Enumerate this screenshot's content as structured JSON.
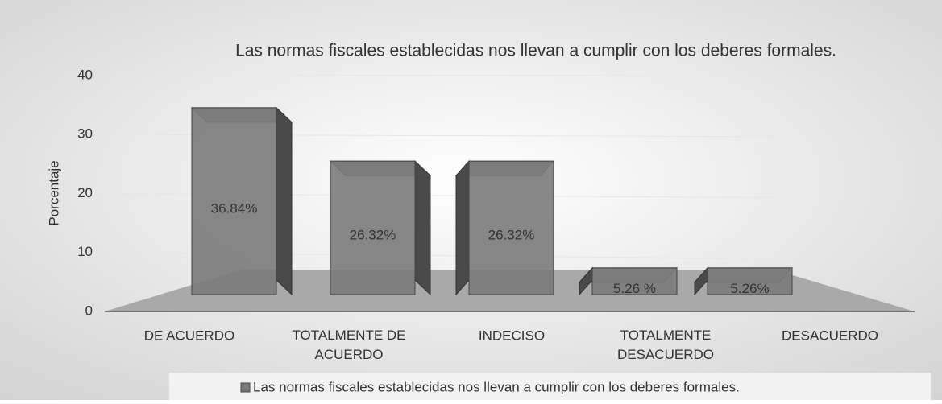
{
  "chart_data": {
    "type": "bar3d",
    "title": "Las normas fiscales establecidas nos llevan a cumplir con los deberes formales.",
    "y_label": "Porcentaje",
    "categories": [
      "DE ACUERDO",
      "TOTALMENTE DE ACUERDO",
      "INDECISO",
      "TOTALMENTE DESACUERDO",
      "DESACUERDO"
    ],
    "series": [
      {
        "name": "Las normas fiscales establecidas nos llevan a cumplir con los deberes formales.",
        "color": "#7a7a7a",
        "values": [
          36.84,
          26.32,
          26.32,
          5.26,
          5.26
        ],
        "value_labels": [
          "36.84%",
          "26.32%",
          "26.32%",
          "5.26 %",
          "5.26%"
        ]
      }
    ],
    "ylim": [
      0,
      40
    ],
    "yticks": [
      0,
      10,
      20,
      30,
      40
    ],
    "grid": true,
    "legend": "bottom"
  }
}
